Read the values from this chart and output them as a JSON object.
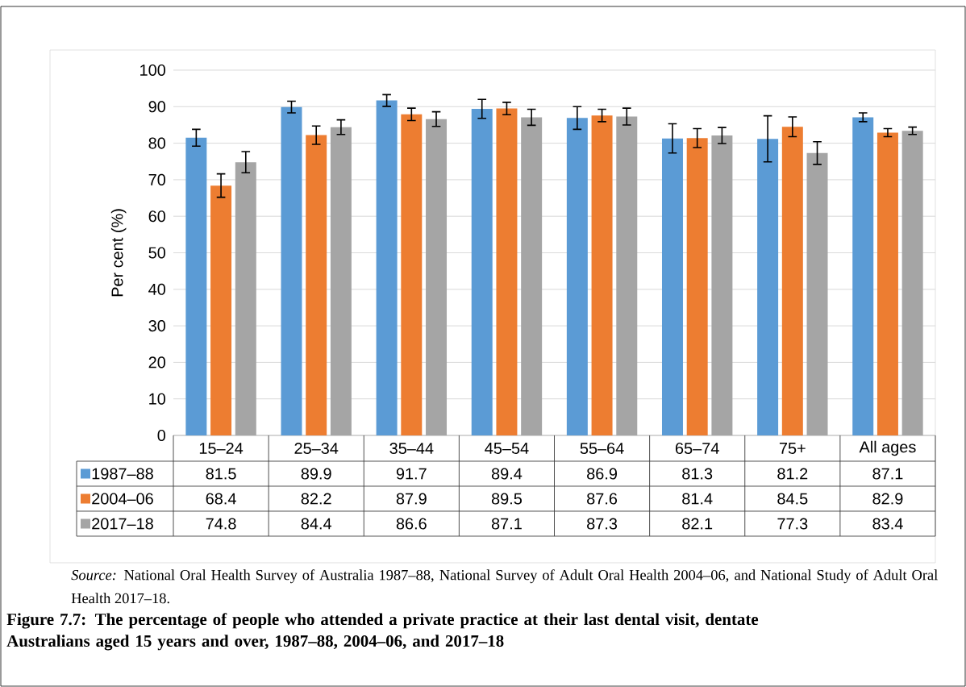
{
  "chart_data": {
    "type": "bar",
    "title": "Figure 7.7: The percentage of people who attended a private practice at their last dental visit, dentate Australians aged 15 years and over, 1987–88, 2004–06, and 2017–18",
    "ylabel": "Per cent (%)",
    "categories": [
      "15–24",
      "25–34",
      "35–44",
      "45–54",
      "55–64",
      "65–74",
      "75+",
      "All ages"
    ],
    "series": [
      {
        "name": "1987–88",
        "color": "#5b9bd5",
        "values": [
          81.5,
          89.9,
          91.7,
          89.4,
          86.9,
          81.3,
          81.2,
          87.1
        ],
        "errors": [
          2.3,
          1.6,
          1.6,
          2.6,
          3.1,
          4.0,
          6.3,
          1.2
        ]
      },
      {
        "name": "2004–06",
        "color": "#ed7d31",
        "values": [
          68.4,
          82.2,
          87.9,
          89.5,
          87.6,
          81.4,
          84.5,
          82.9
        ],
        "errors": [
          3.2,
          2.5,
          1.7,
          1.7,
          1.7,
          2.6,
          2.7,
          1.1
        ]
      },
      {
        "name": "2017–18",
        "color": "#a5a5a5",
        "values": [
          74.8,
          84.4,
          86.6,
          87.1,
          87.3,
          82.1,
          77.3,
          83.4
        ],
        "errors": [
          2.9,
          2.0,
          2.0,
          2.2,
          2.3,
          2.2,
          3.1,
          1.0
        ]
      }
    ],
    "ylim": [
      0,
      100
    ],
    "yticks": [
      0,
      10,
      20,
      30,
      40,
      50,
      60,
      70,
      80,
      90,
      100
    ],
    "grid": "y",
    "legend": "bottom",
    "data_labels": true,
    "annotations": [
      "*Source:* National Oral Health Survey of Australia 1987–88, National Survey of Adult Oral Health 2004–06, and National Study of Adult Oral Health 2017–18."
    ]
  }
}
